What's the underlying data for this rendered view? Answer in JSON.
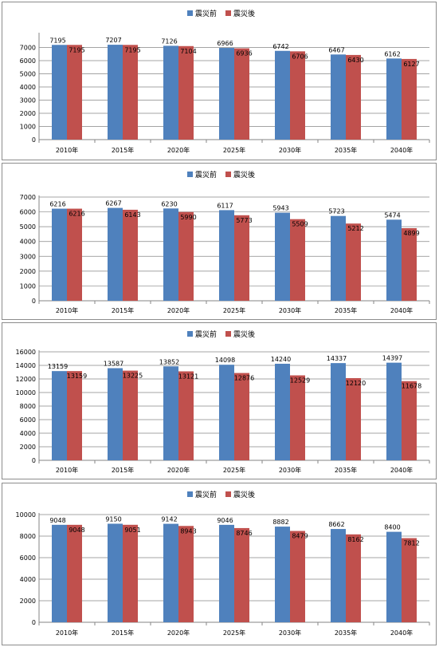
{
  "chart_data": [
    {
      "type": "bar",
      "categories": [
        "2010年",
        "2015年",
        "2020年",
        "2025年",
        "2030年",
        "2035年",
        "2040年"
      ],
      "series": [
        {
          "name": "震災前",
          "color": "#4f81bd",
          "values": [
            7195,
            7207,
            7126,
            6966,
            6742,
            6467,
            6162
          ]
        },
        {
          "name": "震災後",
          "color": "#c0504d",
          "values": [
            7195,
            7195,
            7104,
            6936,
            6706,
            6430,
            6127
          ]
        }
      ],
      "yticks": [
        "0",
        "1000",
        "2000",
        "3000",
        "4000",
        "5000",
        "6000",
        "7000"
      ],
      "ylim": [
        0,
        8000
      ],
      "grid": true,
      "legend": "top-center"
    },
    {
      "type": "bar",
      "categories": [
        "2010年",
        "2015年",
        "2020年",
        "2025年",
        "2030年",
        "2035年",
        "2040年"
      ],
      "series": [
        {
          "name": "震災前",
          "color": "#4f81bd",
          "values": [
            6216,
            6267,
            6230,
            6117,
            5943,
            5723,
            5474
          ]
        },
        {
          "name": "震災後",
          "color": "#c0504d",
          "values": [
            6216,
            6143,
            5990,
            5773,
            5509,
            5212,
            4899
          ]
        }
      ],
      "yticks": [
        "0",
        "1000",
        "2000",
        "3000",
        "4000",
        "5000",
        "6000",
        "7000"
      ],
      "ylim": [
        0,
        7000
      ],
      "grid": true,
      "legend": "top-center"
    },
    {
      "type": "bar",
      "categories": [
        "2010年",
        "2015年",
        "2020年",
        "2025年",
        "2030年",
        "2035年",
        "2040年"
      ],
      "series": [
        {
          "name": "震災前",
          "color": "#4f81bd",
          "values": [
            13159,
            13587,
            13852,
            14098,
            14240,
            14337,
            14397
          ]
        },
        {
          "name": "震災後",
          "color": "#c0504d",
          "values": [
            13159,
            13225,
            13121,
            12876,
            12529,
            12120,
            11678
          ]
        }
      ],
      "yticks": [
        "0",
        "2000",
        "4000",
        "6000",
        "8000",
        "10000",
        "12000",
        "14000",
        "16000"
      ],
      "ylim": [
        0,
        16000
      ],
      "grid": true,
      "legend": "top-center"
    },
    {
      "type": "bar",
      "categories": [
        "2010年",
        "2015年",
        "2020年",
        "2025年",
        "2030年",
        "2035年",
        "2040年"
      ],
      "series": [
        {
          "name": "震災前",
          "color": "#4f81bd",
          "values": [
            9048,
            9150,
            9142,
            9046,
            8882,
            8662,
            8400
          ]
        },
        {
          "name": "震災後",
          "color": "#c0504d",
          "values": [
            9048,
            9051,
            8943,
            8746,
            8479,
            8162,
            7812
          ]
        }
      ],
      "yticks": [
        "0",
        "2000",
        "4000",
        "6000",
        "8000",
        "10000"
      ],
      "ylim": [
        0,
        10000
      ],
      "grid": true,
      "legend": "top-center"
    }
  ]
}
